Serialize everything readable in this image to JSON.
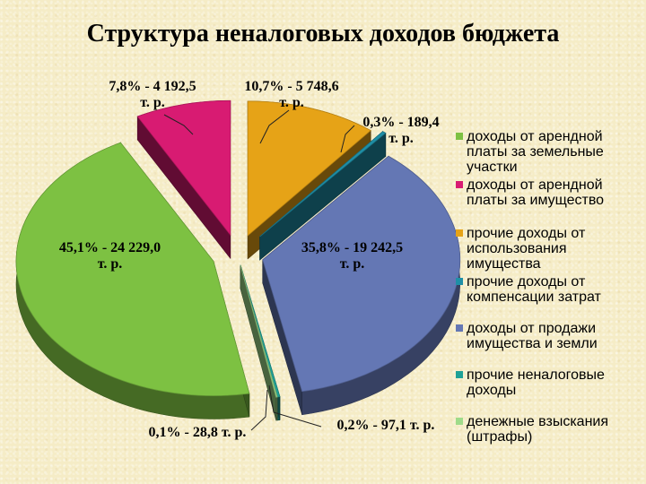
{
  "title": "Структура неналоговых доходов бюджета",
  "chart_data": {
    "type": "pie",
    "style": "3d exploded",
    "legend_position": "right",
    "series": [
      {
        "name": "",
        "slices": [
          {
            "legend": "доходы от арендной платы за земельные участки",
            "percent": 45.1,
            "value": 24229.0,
            "label_main": "45,1% - 24 229,0",
            "label_unit": "т. р.",
            "color": "#7dc142"
          },
          {
            "legend": "доходы от арендной платы за имущество",
            "percent": 7.8,
            "value": 4192.5,
            "label_main": "7,8% - 4 192,5",
            "label_unit": "т. р.",
            "color": "#d81b72"
          },
          {
            "legend": "прочие доходы от использования имущества",
            "percent": 10.7,
            "value": 5748.6,
            "label_main": "10,7% - 5 748,6",
            "label_unit": "т. р.",
            "color": "#e6a317"
          },
          {
            "legend": "прочие доходы от компенсации затрат",
            "percent": 0.3,
            "value": 189.4,
            "label_main": "0,3% - 189,4",
            "label_unit": "т. р.",
            "color": "#1f8fa6"
          },
          {
            "legend": "доходы от продажи имущества и земли",
            "percent": 35.8,
            "value": 19242.5,
            "label_main": "35,8% - 19 242,5",
            "label_unit": "т. р.",
            "color": "#6477b4"
          },
          {
            "legend": "прочие неналоговые доходы",
            "percent": 0.2,
            "value": 97.1,
            "label_main": "0,2% - 97,1 т. р.",
            "label_unit": "",
            "color": "#1fa197"
          },
          {
            "legend": "денежные взыскания (штрафы)",
            "percent": 0.1,
            "value": 28.8,
            "label_main": "0,1% - 28,8 т. р.",
            "label_unit": "",
            "color": "#9fdb8a"
          }
        ]
      }
    ]
  }
}
